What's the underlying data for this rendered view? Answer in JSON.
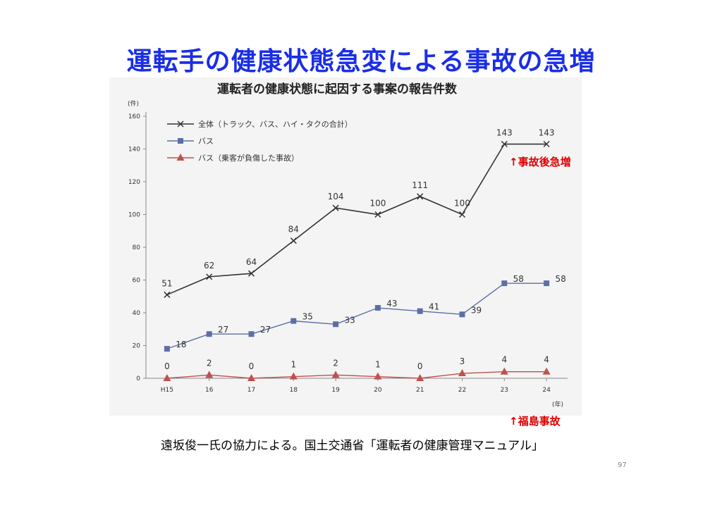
{
  "slide": {
    "title": "運転手の健康状態急変による事故の急増",
    "annotation_top": "↑事故後急増",
    "annotation_bottom": "↑福島事故",
    "caption": "遠坂俊一氏の協力による。国土交通省「運転者の健康管理マニュアル」",
    "page_number": "97"
  },
  "chart_data": {
    "type": "line",
    "title": "運転者の健康状態に起因する事案の報告件数",
    "ylabel": "(件)",
    "xlabel": "(年)",
    "ylim": [
      0,
      160
    ],
    "yticks": [
      "0",
      "20",
      "40",
      "60",
      "80",
      "100",
      "120",
      "140",
      "160"
    ],
    "categories": [
      "H15",
      "16",
      "17",
      "18",
      "19",
      "20",
      "21",
      "22",
      "23",
      "24"
    ],
    "series": [
      {
        "name": "全体（トラック、バス、ハイ・タクの合計）",
        "marker": "x",
        "color": "#333333",
        "values": [
          51,
          62,
          64,
          84,
          104,
          100,
          111,
          100,
          143,
          143
        ],
        "labels": [
          "51",
          "62",
          "64",
          "84",
          "104",
          "100",
          "111",
          "100",
          "143",
          "143"
        ]
      },
      {
        "name": "バス",
        "marker": "square",
        "color": "#5b6fa6",
        "values": [
          18,
          27,
          27,
          35,
          33,
          43,
          41,
          39,
          58,
          58
        ],
        "labels": [
          "18",
          "27",
          "27",
          "35",
          "33",
          "43",
          "41",
          "39",
          "58",
          "58"
        ]
      },
      {
        "name": "バス（乗客が負傷した事故）",
        "marker": "triangle",
        "color": "#c0504d",
        "values": [
          0,
          2,
          0,
          1,
          2,
          1,
          0,
          3,
          4,
          4
        ],
        "labels": [
          "0",
          "2",
          "0",
          "1",
          "2",
          "1",
          "0",
          "3",
          "4",
          "4"
        ]
      }
    ],
    "grid": false,
    "legend_position": "top-left"
  }
}
